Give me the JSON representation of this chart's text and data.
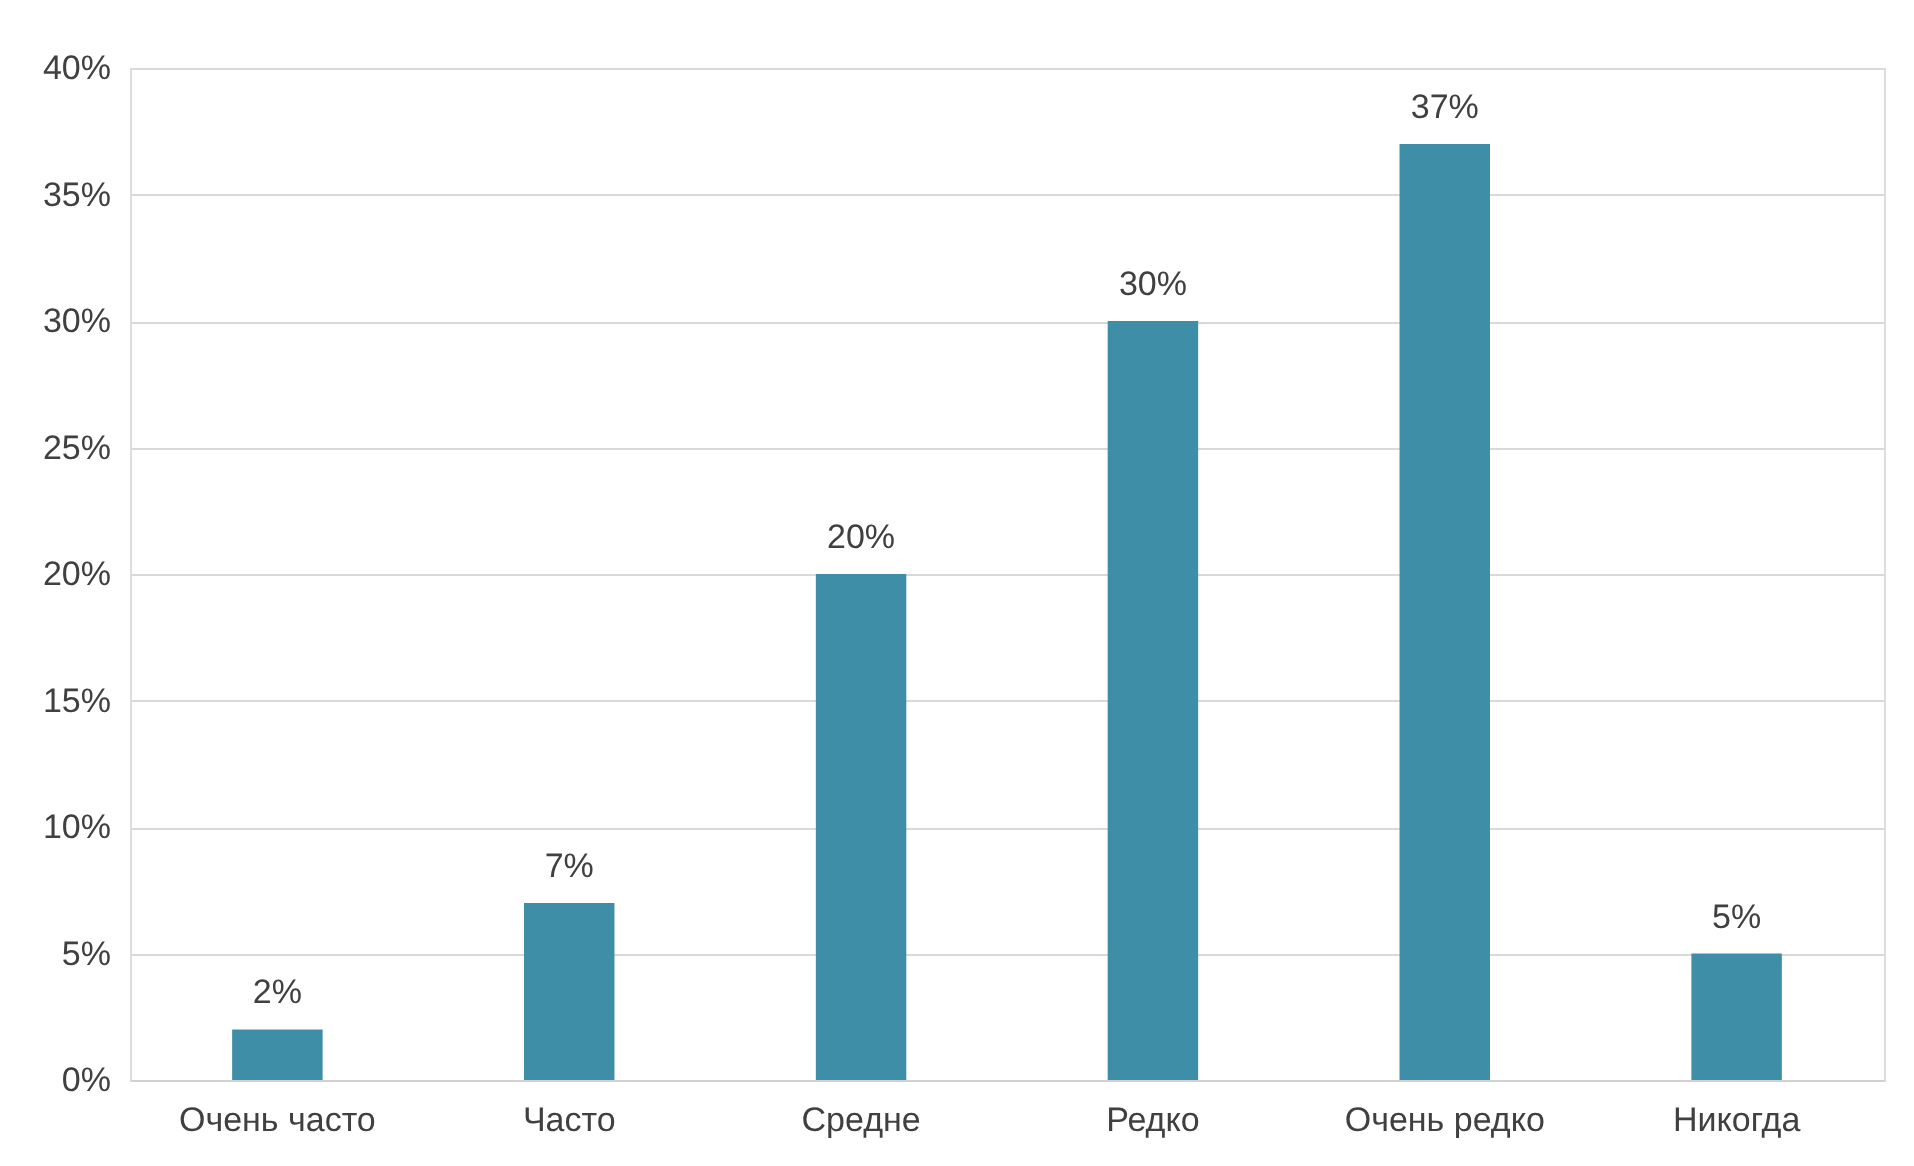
{
  "chart_data": {
    "type": "bar",
    "categories": [
      "Очень часто",
      "Часто",
      "Средне",
      "Редко",
      "Очень редко",
      "Никогда"
    ],
    "values": [
      2,
      7,
      20,
      30,
      37,
      5
    ],
    "value_labels": [
      "2%",
      "7%",
      "20%",
      "30%",
      "37%",
      "5%"
    ],
    "color": "#3f8ea8",
    "ylim": [
      0,
      40
    ],
    "yticks": [
      {
        "value": 0,
        "label": "0%"
      },
      {
        "value": 5,
        "label": "5%"
      },
      {
        "value": 10,
        "label": "10%"
      },
      {
        "value": 15,
        "label": "15%"
      },
      {
        "value": 20,
        "label": "20%"
      },
      {
        "value": 25,
        "label": "25%"
      },
      {
        "value": 30,
        "label": "30%"
      },
      {
        "value": 35,
        "label": "35%"
      },
      {
        "value": 40,
        "label": "40%"
      }
    ],
    "grid": "y"
  }
}
